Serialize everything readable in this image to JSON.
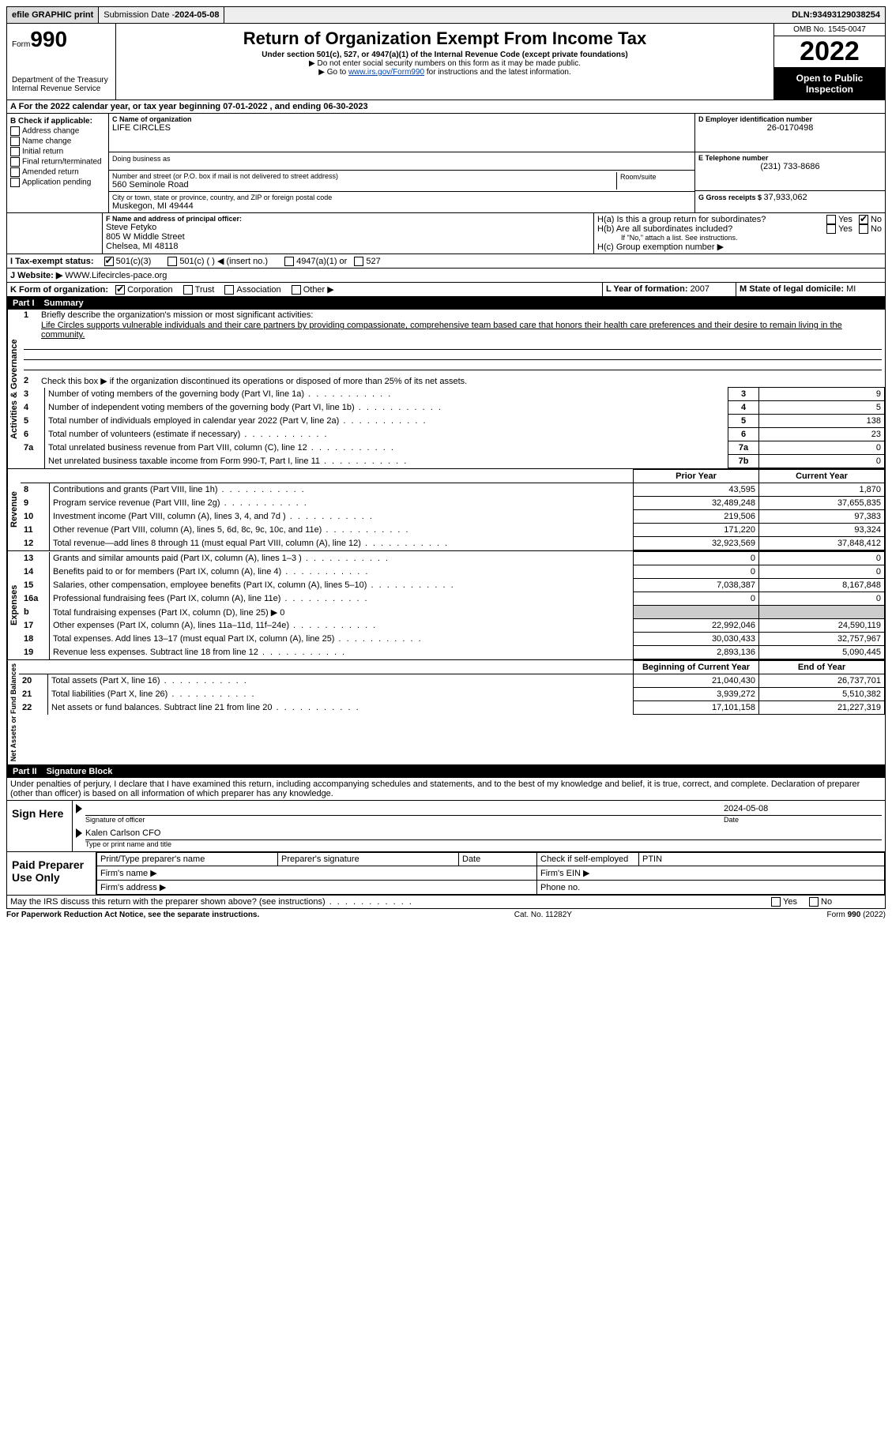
{
  "topbar": {
    "efile": "efile GRAPHIC print",
    "subdate_lbl": "Submission Date - ",
    "subdate": "2024-05-08",
    "dln_lbl": "DLN: ",
    "dln": "93493129038254"
  },
  "header": {
    "form_word": "Form",
    "form_no": "990",
    "dept": "Department of the Treasury\nInternal Revenue Service",
    "title": "Return of Organization Exempt From Income Tax",
    "subtitle": "Under section 501(c), 527, or 4947(a)(1) of the Internal Revenue Code (except private foundations)",
    "note1": "▶ Do not enter social security numbers on this form as it may be made public.",
    "note2_a": "▶ Go to ",
    "note2_link": "www.irs.gov/Form990",
    "note2_b": " for instructions and the latest information.",
    "omb": "OMB No. 1545-0047",
    "year": "2022",
    "openpub": "Open to Public Inspection"
  },
  "lineA": "A For the 2022 calendar year, or tax year beginning 07-01-2022   , and ending 06-30-2023",
  "colB": {
    "hdr": "B Check if applicable:",
    "items": [
      "Address change",
      "Name change",
      "Initial return",
      "Final return/terminated",
      "Amended return",
      "Application pending"
    ]
  },
  "colC": {
    "c_lbl": "C Name of organization",
    "c_val": "LIFE CIRCLES",
    "dba_lbl": "Doing business as",
    "addr_lbl": "Number and street (or P.O. box if mail is not delivered to street address)",
    "room_lbl": "Room/suite",
    "addr": "560 Seminole Road",
    "city_lbl": "City or town, state or province, country, and ZIP or foreign postal code",
    "city": "Muskegon, MI  49444"
  },
  "colD": {
    "d_lbl": "D Employer identification number",
    "d_val": "26-0170498",
    "e_lbl": "E Telephone number",
    "e_val": "(231) 733-8686",
    "g_lbl": "G Gross receipts $ ",
    "g_val": "37,933,062"
  },
  "fh": {
    "f_lbl": "F  Name and address of principal officer:",
    "f_name": "Steve Fetyko",
    "f_addr1": "805 W Middle Street",
    "f_addr2": "Chelsea, MI  48118",
    "ha": "H(a)  Is this a group return for subordinates?",
    "hb": "H(b)  Are all subordinates included?",
    "hb_note": "If \"No,\" attach a list. See instructions.",
    "hc": "H(c)  Group exemption number ▶",
    "yes": "Yes",
    "no": "No"
  },
  "ij": {
    "i_lbl": "I   Tax-exempt status:",
    "i_1": "501(c)(3)",
    "i_2": "501(c) (  ) ◀ (insert no.)",
    "i_3": "4947(a)(1) or",
    "i_4": "527",
    "j_lbl": "J   Website: ▶  ",
    "j_val": "WWW.Lifecircles-pace.org"
  },
  "klm": {
    "k_lbl": "K Form of organization:",
    "k_1": "Corporation",
    "k_2": "Trust",
    "k_3": "Association",
    "k_4": "Other ▶",
    "l_lbl": "L Year of formation: ",
    "l_val": "2007",
    "m_lbl": "M State of legal domicile: ",
    "m_val": "MI"
  },
  "part1": {
    "hdr_part": "Part I",
    "hdr_title": "Summary",
    "tab_ag": "Activities & Governance",
    "tab_rev": "Revenue",
    "tab_exp": "Expenses",
    "tab_na": "Net Assets or Fund Balances",
    "l1a": "Briefly describe the organization's mission or most significant activities:",
    "l1b": "Life Circles supports vulnerable individuals and their care partners by providing compassionate, comprehensive team based care that honors their health care preferences and their desire to remain living in the community.",
    "l2": "Check this box ▶        if the organization discontinued its operations or disposed of more than 25% of its net assets.",
    "rows_ag": [
      {
        "n": "3",
        "t": "Number of voting members of the governing body (Part VI, line 1a)",
        "box": "3",
        "v": "9"
      },
      {
        "n": "4",
        "t": "Number of independent voting members of the governing body (Part VI, line 1b)",
        "box": "4",
        "v": "5"
      },
      {
        "n": "5",
        "t": "Total number of individuals employed in calendar year 2022 (Part V, line 2a)",
        "box": "5",
        "v": "138"
      },
      {
        "n": "6",
        "t": "Total number of volunteers (estimate if necessary)",
        "box": "6",
        "v": "23"
      },
      {
        "n": "7a",
        "t": "Total unrelated business revenue from Part VIII, column (C), line 12",
        "box": "7a",
        "v": "0"
      },
      {
        "n": "",
        "t": "Net unrelated business taxable income from Form 990-T, Part I, line 11",
        "box": "7b",
        "v": "0"
      }
    ],
    "col_py": "Prior Year",
    "col_cy": "Current Year",
    "rows_rev": [
      {
        "n": "8",
        "t": "Contributions and grants (Part VIII, line 1h)",
        "py": "43,595",
        "cy": "1,870"
      },
      {
        "n": "9",
        "t": "Program service revenue (Part VIII, line 2g)",
        "py": "32,489,248",
        "cy": "37,655,835"
      },
      {
        "n": "10",
        "t": "Investment income (Part VIII, column (A), lines 3, 4, and 7d )",
        "py": "219,506",
        "cy": "97,383"
      },
      {
        "n": "11",
        "t": "Other revenue (Part VIII, column (A), lines 5, 6d, 8c, 9c, 10c, and 11e)",
        "py": "171,220",
        "cy": "93,324"
      },
      {
        "n": "12",
        "t": "Total revenue—add lines 8 through 11 (must equal Part VIII, column (A), line 12)",
        "py": "32,923,569",
        "cy": "37,848,412"
      }
    ],
    "rows_exp": [
      {
        "n": "13",
        "t": "Grants and similar amounts paid (Part IX, column (A), lines 1–3 )",
        "py": "0",
        "cy": "0"
      },
      {
        "n": "14",
        "t": "Benefits paid to or for members (Part IX, column (A), line 4)",
        "py": "0",
        "cy": "0"
      },
      {
        "n": "15",
        "t": "Salaries, other compensation, employee benefits (Part IX, column (A), lines 5–10)",
        "py": "7,038,387",
        "cy": "8,167,848"
      },
      {
        "n": "16a",
        "t": "Professional fundraising fees (Part IX, column (A), line 11e)",
        "py": "0",
        "cy": "0"
      },
      {
        "n": "b",
        "t": "Total fundraising expenses (Part IX, column (D), line 25) ▶ 0",
        "py": "SHADE",
        "cy": "SHADE"
      },
      {
        "n": "17",
        "t": "Other expenses (Part IX, column (A), lines 11a–11d, 11f–24e)",
        "py": "22,992,046",
        "cy": "24,590,119"
      },
      {
        "n": "18",
        "t": "Total expenses. Add lines 13–17 (must equal Part IX, column (A), line 25)",
        "py": "30,030,433",
        "cy": "32,757,967"
      },
      {
        "n": "19",
        "t": "Revenue less expenses. Subtract line 18 from line 12",
        "py": "2,893,136",
        "cy": "5,090,445"
      }
    ],
    "col_bcy": "Beginning of Current Year",
    "col_eoy": "End of Year",
    "rows_na": [
      {
        "n": "20",
        "t": "Total assets (Part X, line 16)",
        "py": "21,040,430",
        "cy": "26,737,701"
      },
      {
        "n": "21",
        "t": "Total liabilities (Part X, line 26)",
        "py": "3,939,272",
        "cy": "5,510,382"
      },
      {
        "n": "22",
        "t": "Net assets or fund balances. Subtract line 21 from line 20",
        "py": "17,101,158",
        "cy": "21,227,319"
      }
    ]
  },
  "part2": {
    "hdr_part": "Part II",
    "hdr_title": "Signature Block",
    "decl": "Under penalties of perjury, I declare that I have examined this return, including accompanying schedules and statements, and to the best of my knowledge and belief, it is true, correct, and complete. Declaration of preparer (other than officer) is based on all information of which preparer has any knowledge.",
    "sign_here": "Sign Here",
    "sig_of": "Signature of officer",
    "sig_date": "Date",
    "sig_date_v": "2024-05-08",
    "sig_name": "Kalen Carlson CFO",
    "sig_name_lbl": "Type or print name and title",
    "paid": "Paid Preparer Use Only",
    "pp_name": "Print/Type preparer's name",
    "pp_sig": "Preparer's signature",
    "pp_date": "Date",
    "pp_ck": "Check         if self-employed",
    "pp_ptin": "PTIN",
    "firm_name": "Firm's name    ▶",
    "firm_ein": "Firm's EIN ▶",
    "firm_addr": "Firm's address ▶",
    "phone": "Phone no.",
    "may": "May the IRS discuss this return with the preparer shown above? (see instructions)"
  },
  "footer": {
    "pra": "For Paperwork Reduction Act Notice, see the separate instructions.",
    "cat": "Cat. No. 11282Y",
    "form": "Form 990 (2022)"
  }
}
